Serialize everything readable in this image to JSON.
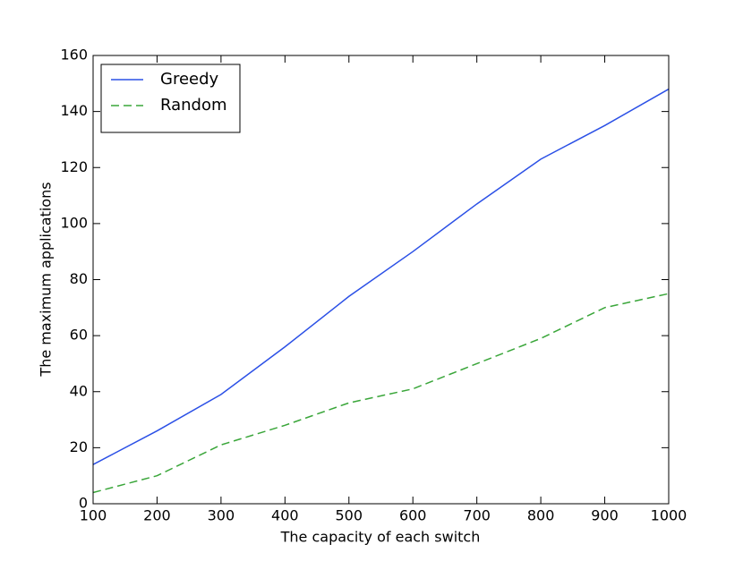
{
  "chart_data": {
    "type": "line",
    "x_label": "The capacity of each switch",
    "y_label": "The maximum applications",
    "x": [
      100,
      200,
      300,
      400,
      500,
      600,
      700,
      800,
      900,
      1000
    ],
    "series": [
      {
        "name": "Greedy",
        "color": "#2b50e6",
        "linestyle": "solid",
        "values": [
          14,
          26,
          39,
          56,
          74,
          90,
          107,
          123,
          135,
          148
        ]
      },
      {
        "name": "Random",
        "color": "#3aa63a",
        "linestyle": "dashed",
        "values": [
          4,
          10,
          21,
          28,
          36,
          41,
          50,
          59,
          70,
          75
        ]
      }
    ],
    "xlim": [
      100,
      1000
    ],
    "xticks": [
      100,
      200,
      300,
      400,
      500,
      600,
      700,
      800,
      900,
      1000
    ],
    "ylim": [
      0,
      160
    ],
    "yticks": [
      0,
      20,
      40,
      60,
      80,
      100,
      120,
      140,
      160
    ],
    "grid": false,
    "legend": "upper left"
  }
}
